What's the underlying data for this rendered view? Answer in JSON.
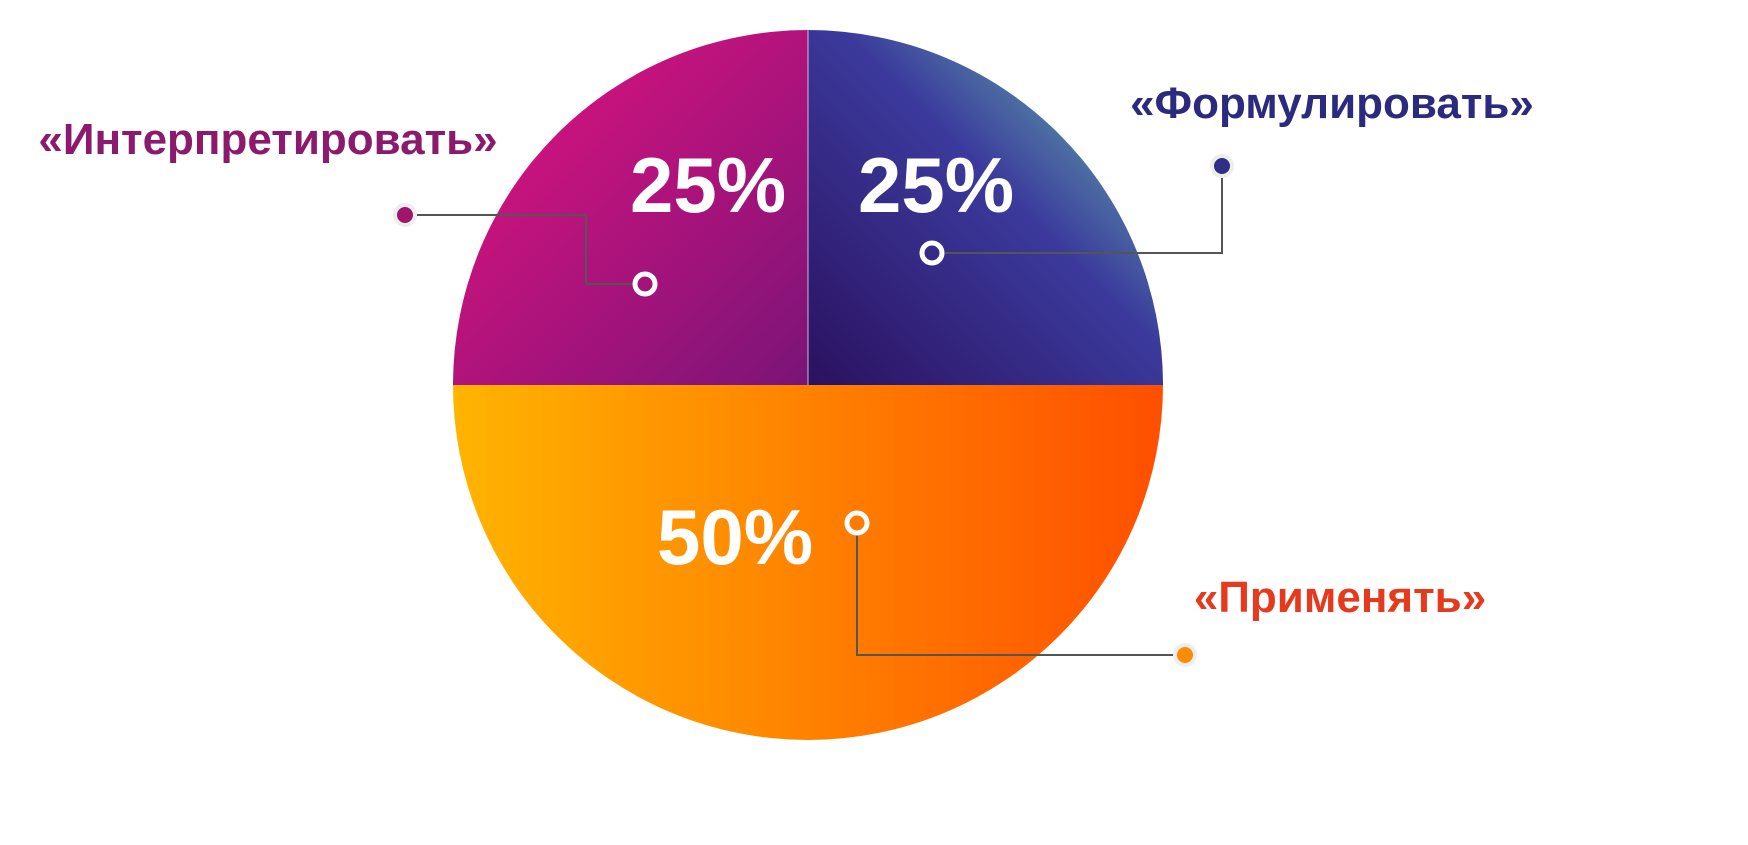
{
  "chart_data": {
    "type": "pie",
    "categories": [
      "«Интерпретировать»",
      "«Формулировать»",
      "«Применять»"
    ],
    "values": [
      25,
      25,
      50
    ],
    "value_labels": [
      "25%",
      "25%",
      "50%"
    ],
    "colors": [
      "#b81577",
      "#3a2d8f",
      "#ff8a00"
    ],
    "label_colors": [
      "#8b1a6e",
      "#2b2a7e",
      "#e63a1e"
    ]
  }
}
